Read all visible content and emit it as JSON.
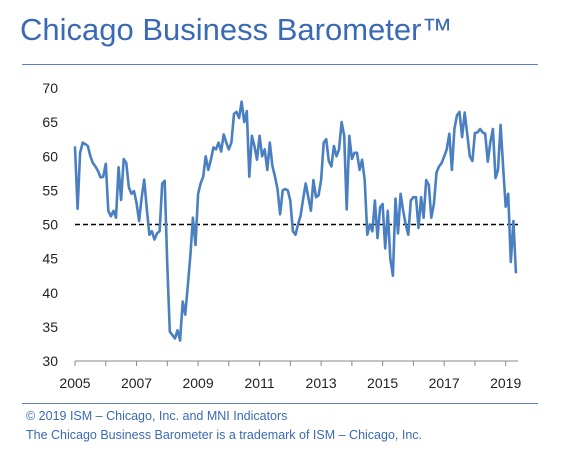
{
  "page": {
    "title": "Chicago Business Barometer™",
    "footer_lines": [
      "© 2019 ISM – Chicago, Inc. and MNI Indicators",
      "The Chicago Business Barometer is a trademark of ISM – Chicago, Inc."
    ]
  },
  "chart_data": {
    "type": "line",
    "title": "",
    "xlabel": "",
    "ylabel": "",
    "xlim": [
      2005,
      2019.4
    ],
    "ylim": [
      30,
      70
    ],
    "x_ticks": [
      "2005",
      "2007",
      "2009",
      "2011",
      "2013",
      "2015",
      "2017",
      "2019"
    ],
    "y_ticks": [
      "30",
      "35",
      "40",
      "45",
      "50",
      "55",
      "60",
      "65",
      "70"
    ],
    "grid": false,
    "legend": "none",
    "reference_line": {
      "y": 50,
      "style": "dashed",
      "color": "#000000"
    },
    "series": [
      {
        "color": "#4a7fc1",
        "x": [
          2005.0,
          2005.083,
          2005.167,
          2005.25,
          2005.333,
          2005.417,
          2005.5,
          2005.583,
          2005.667,
          2005.75,
          2005.833,
          2005.917,
          2006.0,
          2006.083,
          2006.167,
          2006.25,
          2006.333,
          2006.417,
          2006.5,
          2006.583,
          2006.667,
          2006.75,
          2006.833,
          2006.917,
          2007.0,
          2007.083,
          2007.167,
          2007.25,
          2007.333,
          2007.417,
          2007.5,
          2007.583,
          2007.667,
          2007.75,
          2007.833,
          2007.917,
          2008.0,
          2008.083,
          2008.167,
          2008.25,
          2008.333,
          2008.417,
          2008.5,
          2008.583,
          2008.667,
          2008.75,
          2008.833,
          2008.917,
          2009.0,
          2009.083,
          2009.167,
          2009.25,
          2009.333,
          2009.417,
          2009.5,
          2009.583,
          2009.667,
          2009.75,
          2009.833,
          2009.917,
          2010.0,
          2010.083,
          2010.167,
          2010.25,
          2010.333,
          2010.417,
          2010.5,
          2010.583,
          2010.667,
          2010.75,
          2010.833,
          2010.917,
          2011.0,
          2011.083,
          2011.167,
          2011.25,
          2011.333,
          2011.417,
          2011.5,
          2011.583,
          2011.667,
          2011.75,
          2011.833,
          2011.917,
          2012.0,
          2012.083,
          2012.167,
          2012.25,
          2012.333,
          2012.417,
          2012.5,
          2012.583,
          2012.667,
          2012.75,
          2012.833,
          2012.917,
          2013.0,
          2013.083,
          2013.167,
          2013.25,
          2013.333,
          2013.417,
          2013.5,
          2013.583,
          2013.667,
          2013.75,
          2013.833,
          2013.917,
          2014.0,
          2014.083,
          2014.167,
          2014.25,
          2014.333,
          2014.417,
          2014.5,
          2014.583,
          2014.667,
          2014.75,
          2014.833,
          2014.917,
          2015.0,
          2015.083,
          2015.167,
          2015.25,
          2015.333,
          2015.417,
          2015.5,
          2015.583,
          2015.667,
          2015.75,
          2015.833,
          2015.917,
          2016.0,
          2016.083,
          2016.167,
          2016.25,
          2016.333,
          2016.417,
          2016.5,
          2016.583,
          2016.667,
          2016.75,
          2016.833,
          2016.917,
          2017.0,
          2017.083,
          2017.167,
          2017.25,
          2017.333,
          2017.417,
          2017.5,
          2017.583,
          2017.667,
          2017.75,
          2017.833,
          2017.917,
          2018.0,
          2018.083,
          2018.167,
          2018.25,
          2018.333,
          2018.417,
          2018.5,
          2018.583,
          2018.667,
          2018.75,
          2018.833,
          2018.917,
          2019.0,
          2019.083,
          2019.167,
          2019.25,
          2019.333
        ],
        "values": [
          61.3,
          52.3,
          60.5,
          62.0,
          61.8,
          61.5,
          60.0,
          59.0,
          58.5,
          57.8,
          56.9,
          57.0,
          58.9,
          52.0,
          51.2,
          52.0,
          51.0,
          58.4,
          53.6,
          59.6,
          59.0,
          55.5,
          54.5,
          54.9,
          53.2,
          50.5,
          54.0,
          56.6,
          52.3,
          48.5,
          49.0,
          47.8,
          48.7,
          49.0,
          56.0,
          56.4,
          44.0,
          34.3,
          33.8,
          33.3,
          34.5,
          33.0,
          38.7,
          36.8,
          41.0,
          45.5,
          51.0,
          47.0,
          54.5,
          56.0,
          57.0,
          60.0,
          58.0,
          59.5,
          61.3,
          61.0,
          62.0,
          60.7,
          63.2,
          62.0,
          61.0,
          62.0,
          66.2,
          66.5,
          65.6,
          68.0,
          65.0,
          66.6,
          57.0,
          63.0,
          61.5,
          59.5,
          63.0,
          60.0,
          61.0,
          58.0,
          62.0,
          58.6,
          57.0,
          55.2,
          51.5,
          55.0,
          55.2,
          55.0,
          53.5,
          49.0,
          48.5,
          50.0,
          51.3,
          53.8,
          56.0,
          54.0,
          52.0,
          56.5,
          54.0,
          54.3,
          56.5,
          62.0,
          62.5,
          59.3,
          58.5,
          61.5,
          60.0,
          61.0,
          65.0,
          63.0,
          52.2,
          63.0,
          59.6,
          60.5,
          60.5,
          58.0,
          59.5,
          56.5,
          48.5,
          50.0,
          49.0,
          53.5,
          48.0,
          52.5,
          53.0,
          46.5,
          52.0,
          45.0,
          42.5,
          53.8,
          48.7,
          54.5,
          52.0,
          50.0,
          48.5,
          53.5,
          54.0,
          54.0,
          49.5,
          54.0,
          51.0,
          56.5,
          55.8,
          51.0,
          53.0,
          57.6,
          58.5,
          59.0,
          60.0,
          61.0,
          63.3,
          58.0,
          64.0,
          66.0,
          66.5,
          62.8,
          66.4,
          63.3,
          60.0,
          59.3,
          63.4,
          63.5,
          64.0,
          63.5,
          63.3,
          59.2,
          62.0,
          64.0,
          56.8,
          58.0,
          64.6,
          58.5,
          52.6,
          54.5,
          44.5,
          50.5,
          43.0
        ]
      }
    ]
  }
}
